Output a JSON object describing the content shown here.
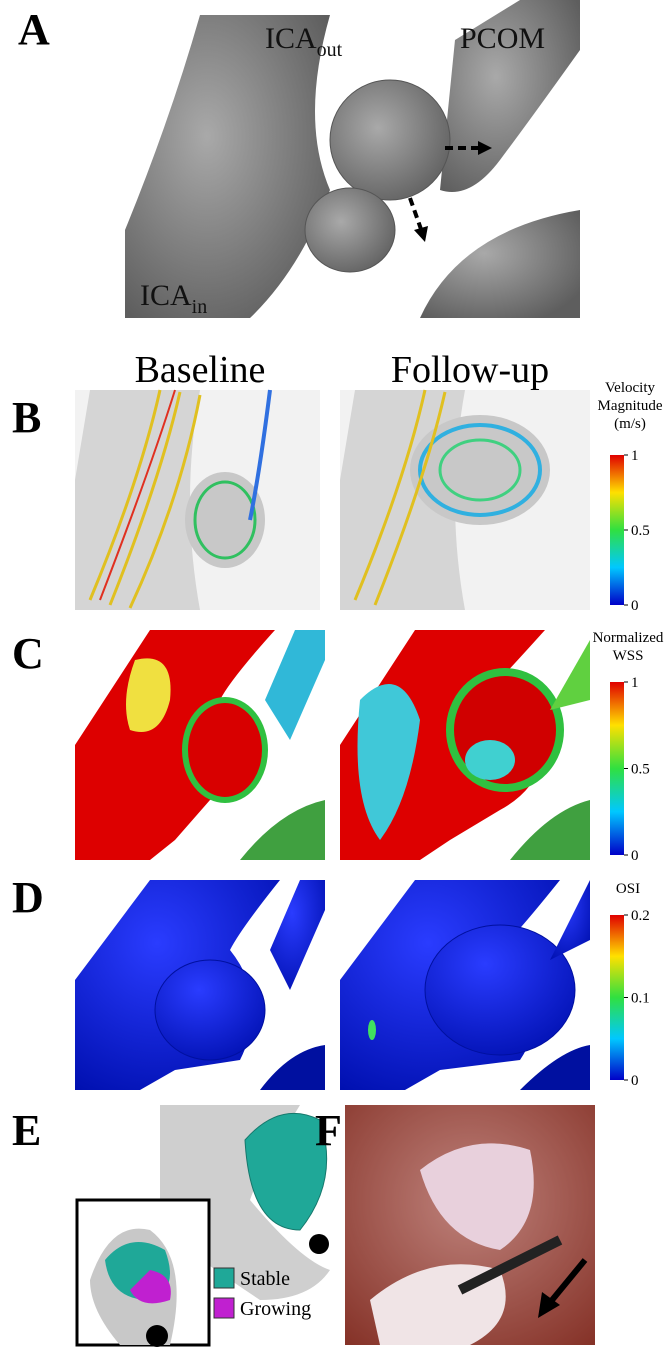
{
  "panels": {
    "labels": [
      "A",
      "B",
      "C",
      "D",
      "E",
      "F"
    ]
  },
  "annotations": {
    "ica_out": {
      "main": "ICA",
      "sub": "out"
    },
    "pcom": "PCOM",
    "ica_in": {
      "main": "ICA",
      "sub": "in"
    }
  },
  "columns": [
    "Baseline",
    "Follow-up"
  ],
  "colorbars": [
    {
      "title": [
        "Velocity",
        "Magnitude",
        "(m/s)"
      ],
      "ticks": [
        1,
        0.5,
        0
      ]
    },
    {
      "title": [
        "Normalized",
        "WSS"
      ],
      "ticks": [
        1,
        0.5,
        0
      ]
    },
    {
      "title": [
        "OSI"
      ],
      "ticks": [
        0.2,
        0.1,
        0
      ]
    }
  ],
  "legend": [
    {
      "name": "Stable",
      "color": "#1fa898"
    },
    {
      "name": "Growing",
      "color": "#c020d0"
    }
  ]
}
